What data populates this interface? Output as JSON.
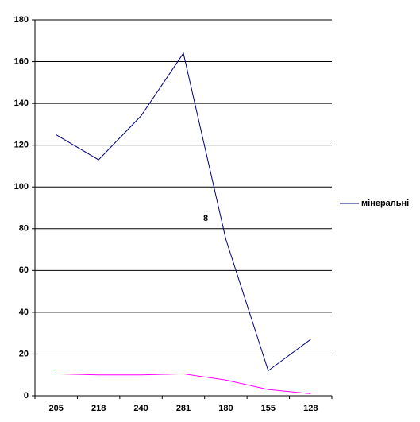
{
  "chart_data": {
    "type": "line",
    "categories": [
      "205",
      "218",
      "240",
      "281",
      "180",
      "155",
      "128"
    ],
    "series": [
      {
        "name": "мінеральні",
        "color": "#000080",
        "values": [
          125,
          113,
          134,
          164,
          75,
          12,
          27
        ]
      },
      {
        "color": "#ff00ff",
        "values": [
          10.5,
          10,
          10,
          10.5,
          7.5,
          3,
          1
        ]
      }
    ],
    "ylim": [
      0,
      180
    ],
    "yticks": [
      0,
      20,
      40,
      60,
      80,
      100,
      120,
      140,
      160,
      180
    ],
    "grid": true,
    "legend": "right",
    "annotation": "8"
  }
}
